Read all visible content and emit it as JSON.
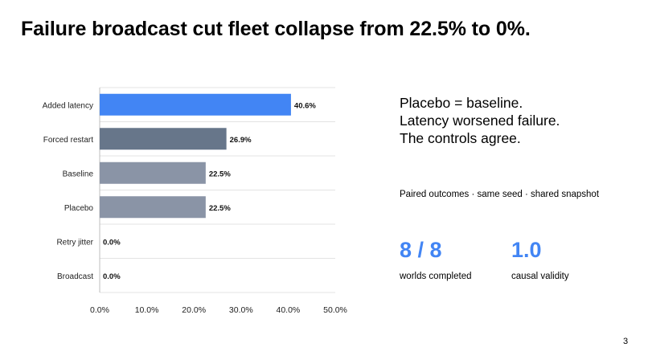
{
  "slide": {
    "title": "Failure broadcast cut fleet collapse from 22.5% to 0%.",
    "page_number": "3"
  },
  "takeaways": [
    "Placebo = baseline.",
    "Latency worsened failure.",
    "The controls agree."
  ],
  "subnote": "Paired outcomes · same seed · shared snapshot",
  "metrics": [
    {
      "value": "8 / 8",
      "label": "worlds completed",
      "color": "#4285f4"
    },
    {
      "value": "1.0",
      "label": "causal validity",
      "color": "#4285f4"
    }
  ],
  "chart_data": {
    "type": "bar",
    "orientation": "horizontal",
    "categories": [
      "Added latency",
      "Forced restart",
      "Baseline",
      "Placebo",
      "Retry jitter",
      "Broadcast"
    ],
    "values": [
      40.6,
      26.9,
      22.5,
      22.5,
      0.0,
      0.0
    ],
    "data_labels": [
      "40.6%",
      "26.9%",
      "22.5%",
      "22.5%",
      "0.0%",
      "0.0%"
    ],
    "bar_colors": [
      "#4285f4",
      "#67768a",
      "#8a94a6",
      "#8a94a6",
      "#8a94a6",
      "#8a94a6"
    ],
    "xlim": [
      0,
      50
    ],
    "xticks": [
      0,
      10,
      20,
      30,
      40,
      50
    ],
    "xtick_labels": [
      "0.0%",
      "10.0%",
      "20.0%",
      "30.0%",
      "40.0%",
      "50.0%"
    ],
    "grid": "horizontal-lines",
    "legend": "none"
  }
}
